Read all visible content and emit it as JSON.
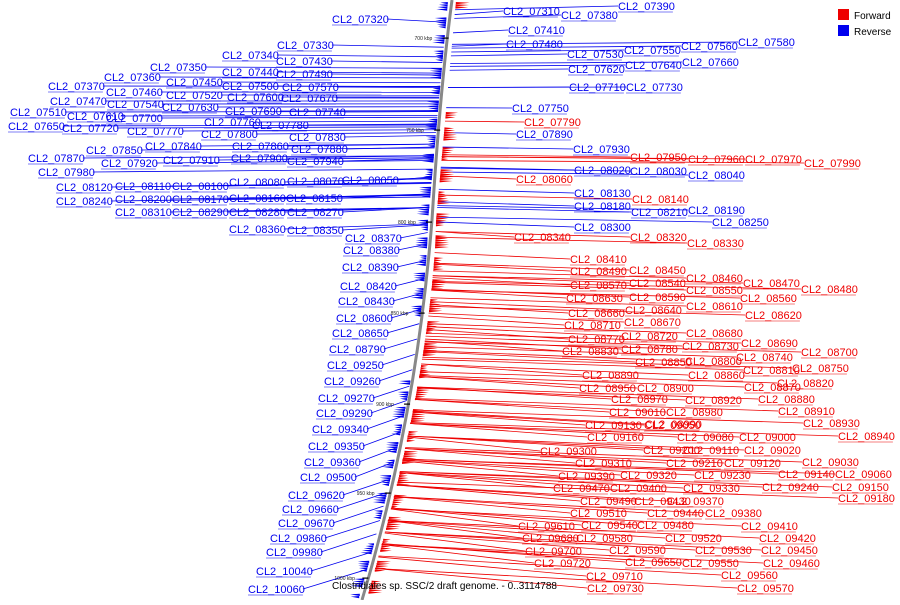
{
  "caption": "Clostridiales sp. SSC/2 draft genome. - 0..3114788",
  "legend": [
    {
      "label": "Forward",
      "color": "#ee0000"
    },
    {
      "label": "Reverse",
      "color": "#0000ee"
    }
  ],
  "scale_ticks": [
    "700 kbp",
    "750 kbp",
    "800 kbp",
    "850 kbp",
    "900 kbp",
    "950 kbp",
    "1000 kbp"
  ],
  "labels": [
    "CL2_07320",
    "CL2_07330",
    "CL2_07340",
    "CL2_07350",
    "CL2_07360",
    "CL2_07370",
    "CL2_07380",
    "CL2_07390",
    "CL2_07410",
    "CL2_07310",
    "CL2_07430",
    "CL2_07440",
    "CL2_07450",
    "CL2_07460",
    "CL2_07470",
    "CL2_07480",
    "CL2_07490",
    "CL2_07500",
    "CL2_07510",
    "CL2_07520",
    "CL2_07530",
    "CL2_07540",
    "CL2_07550",
    "CL2_07560",
    "CL2_07570",
    "CL2_07580",
    "CL2_07600",
    "CL2_07610",
    "CL2_07620",
    "CL2_07630",
    "CL2_07640",
    "CL2_07650",
    "CL2_07660",
    "CL2_07670",
    "CL2_07690",
    "CL2_07700",
    "CL2_07710",
    "CL2_07720",
    "CL2_07730",
    "CL2_07740",
    "CL2_07750",
    "CL2_07760",
    "CL2_07770",
    "CL2_07780",
    "CL2_07790",
    "CL2_07800",
    "CL2_07830",
    "CL2_07840",
    "CL2_07850",
    "CL2_07860",
    "CL2_07870",
    "CL2_07880",
    "CL2_07890",
    "CL2_07900",
    "CL2_07910",
    "CL2_07920",
    "CL2_07930",
    "CL2_07940",
    "CL2_07950",
    "CL2_07960",
    "CL2_07970",
    "CL2_07980",
    "CL2_07990",
    "CL2_08020",
    "CL2_08030",
    "CL2_08040",
    "CL2_08050",
    "CL2_08060",
    "CL2_08070",
    "CL2_08080",
    "CL2_08100",
    "CL2_08110",
    "CL2_08120",
    "CL2_08130",
    "CL2_08140",
    "CL2_08150",
    "CL2_08160",
    "CL2_08170",
    "CL2_08180",
    "CL2_08190",
    "CL2_08200",
    "CL2_08210",
    "CL2_08240",
    "CL2_08250",
    "CL2_08270",
    "CL2_08280",
    "CL2_08290",
    "CL2_08300",
    "CL2_08310",
    "CL2_08320",
    "CL2_08330",
    "CL2_08340",
    "CL2_08350",
    "CL2_08360",
    "CL2_08370",
    "CL2_08380",
    "CL2_08390",
    "CL2_08410",
    "CL2_08420",
    "CL2_08430",
    "CL2_08450",
    "CL2_08460",
    "CL2_08470",
    "CL2_08480",
    "CL2_08490",
    "CL2_08540",
    "CL2_08550",
    "CL2_08560",
    "CL2_08570",
    "CL2_08590",
    "CL2_08600",
    "CL2_08610",
    "CL2_08620",
    "CL2_08630",
    "CL2_08640",
    "CL2_08650",
    "CL2_08660",
    "CL2_08670",
    "CL2_08680",
    "CL2_08690",
    "CL2_08700",
    "CL2_08710",
    "CL2_08720",
    "CL2_08730",
    "CL2_08740",
    "CL2_08750",
    "CL2_08770",
    "CL2_08780",
    "CL2_08790",
    "CL2_08800",
    "CL2_08810",
    "CL2_08820",
    "CL2_08830",
    "CL2_08850",
    "CL2_08860",
    "CL2_08870",
    "CL2_08880",
    "CL2_08890",
    "CL2_08900",
    "CL2_08910",
    "CL2_08920",
    "CL2_08930",
    "CL2_08940",
    "CL2_08950",
    "CL2_08970",
    "CL2_08980",
    "CL2_08990",
    "CL2_09000",
    "CL2_09010",
    "CL2_09020",
    "CL2_09030",
    "CL2_09050",
    "CL2_09060",
    "CL2_09080",
    "CL2_09110",
    "CL2_09120",
    "CL2_09130",
    "CL2_09140",
    "CL2_09150",
    "CL2_09160",
    "CL2_09180",
    "CL2_09200",
    "CL2_09210",
    "CL2_09230",
    "CL2_09240",
    "CL2_09250",
    "CL2_09260",
    "CL2_09270",
    "CL2_09290",
    "CL2_09300",
    "CL2_09310",
    "CL2_09320",
    "CL2_09330",
    "CL2_09340",
    "CL2_09350",
    "CL2_09360",
    "CL2_09370",
    "CL2_09380",
    "CL2_09390",
    "CL2_09400",
    "CL2_09410",
    "CL2_09420",
    "CL2_09430",
    "CL2_09440",
    "CL2_09450",
    "CL2_09460",
    "CL2_09470",
    "CL2_09480",
    "CL2_09490",
    "CL2_09500",
    "CL2_09510",
    "CL2_09520",
    "CL2_09530",
    "CL2_09540",
    "CL2_09550",
    "CL2_09560",
    "CL2_09570",
    "CL2_09580",
    "CL2_09590",
    "CL2_09610",
    "CL2_09620",
    "CL2_09650",
    "CL2_09660",
    "CL2_09670",
    "CL2_09680",
    "CL2_09700",
    "CL2_09710",
    "CL2_09720",
    "CL2_09730",
    "CL2_09860",
    "CL2_09980",
    "CL2_10040",
    "CL2_10060"
  ]
}
